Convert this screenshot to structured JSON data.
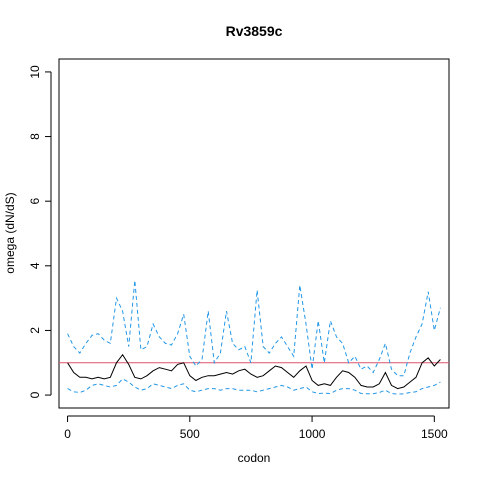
{
  "chart_data": {
    "type": "line",
    "title": "Rv3859c",
    "xlabel": "codon",
    "ylabel": "omega (dN/dS)",
    "xlim": [
      -35,
      1560
    ],
    "ylim": [
      -0.4,
      10.4
    ],
    "x_ticks": [
      "0",
      "500",
      "1000",
      "1500"
    ],
    "y_ticks": [
      "0",
      "2",
      "4",
      "6",
      "8",
      "10"
    ],
    "grid": false,
    "reference_line": {
      "y": 1,
      "color": "#df536b"
    },
    "colors": {
      "omega": "#000000",
      "bounds": "#2297e6"
    },
    "x": [
      0,
      25,
      50,
      75,
      100,
      125,
      150,
      175,
      200,
      225,
      250,
      275,
      300,
      325,
      350,
      375,
      400,
      425,
      450,
      475,
      500,
      525,
      550,
      575,
      600,
      625,
      650,
      675,
      700,
      725,
      750,
      775,
      800,
      825,
      850,
      875,
      900,
      925,
      950,
      975,
      1000,
      1025,
      1050,
      1075,
      1100,
      1125,
      1150,
      1175,
      1200,
      1225,
      1250,
      1275,
      1300,
      1325,
      1350,
      1375,
      1400,
      1425,
      1450,
      1475,
      1500,
      1525
    ],
    "series": [
      {
        "role": "omega",
        "values": [
          1.0,
          0.7,
          0.55,
          0.55,
          0.5,
          0.55,
          0.5,
          0.55,
          1.0,
          1.25,
          0.95,
          0.55,
          0.5,
          0.6,
          0.75,
          0.85,
          0.8,
          0.75,
          0.95,
          1.0,
          0.6,
          0.45,
          0.55,
          0.6,
          0.6,
          0.65,
          0.7,
          0.65,
          0.75,
          0.8,
          0.65,
          0.55,
          0.6,
          0.75,
          0.9,
          0.85,
          0.7,
          0.55,
          0.75,
          0.9,
          0.45,
          0.3,
          0.35,
          0.3,
          0.55,
          0.75,
          0.7,
          0.55,
          0.3,
          0.25,
          0.25,
          0.35,
          0.7,
          0.3,
          0.2,
          0.25,
          0.4,
          0.55,
          1.0,
          1.15,
          0.9,
          1.1
        ]
      },
      {
        "role": "upper",
        "values": [
          1.9,
          1.5,
          1.3,
          1.6,
          1.85,
          1.9,
          1.7,
          1.6,
          3.0,
          2.6,
          1.5,
          3.55,
          1.4,
          1.5,
          2.2,
          1.8,
          1.6,
          1.55,
          1.9,
          2.5,
          1.2,
          0.9,
          1.1,
          2.6,
          1.0,
          1.3,
          2.6,
          1.6,
          1.4,
          1.5,
          1.0,
          3.25,
          1.5,
          1.3,
          1.6,
          1.8,
          1.5,
          1.2,
          3.4,
          2.2,
          0.8,
          2.3,
          1.0,
          2.3,
          1.8,
          1.6,
          1.0,
          1.2,
          0.8,
          0.9,
          0.7,
          1.1,
          1.6,
          0.8,
          0.6,
          0.6,
          1.3,
          1.8,
          2.2,
          3.2,
          2.0,
          2.7
        ]
      },
      {
        "role": "lower",
        "values": [
          0.2,
          0.1,
          0.08,
          0.15,
          0.3,
          0.35,
          0.3,
          0.25,
          0.3,
          0.5,
          0.4,
          0.25,
          0.15,
          0.2,
          0.35,
          0.3,
          0.25,
          0.2,
          0.3,
          0.35,
          0.15,
          0.1,
          0.15,
          0.2,
          0.2,
          0.15,
          0.2,
          0.2,
          0.15,
          0.15,
          0.15,
          0.1,
          0.15,
          0.2,
          0.25,
          0.3,
          0.25,
          0.15,
          0.2,
          0.25,
          0.1,
          0.05,
          0.06,
          0.05,
          0.15,
          0.2,
          0.2,
          0.15,
          0.05,
          0.04,
          0.04,
          0.08,
          0.15,
          0.05,
          0.03,
          0.04,
          0.08,
          0.1,
          0.2,
          0.25,
          0.3,
          0.4
        ]
      }
    ]
  }
}
